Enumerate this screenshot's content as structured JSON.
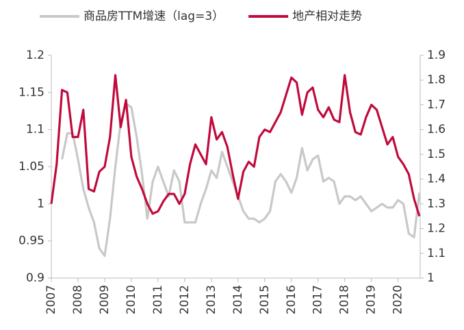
{
  "chart_data": {
    "type": "line",
    "x": [
      2007,
      2007.2,
      2007.4,
      2007.6,
      2007.8,
      2008,
      2008.2,
      2008.4,
      2008.6,
      2008.8,
      2009,
      2009.2,
      2009.4,
      2009.6,
      2009.8,
      2010,
      2010.2,
      2010.4,
      2010.6,
      2010.8,
      2011,
      2011.2,
      2011.4,
      2011.6,
      2011.8,
      2012,
      2012.2,
      2012.4,
      2012.6,
      2012.8,
      2013,
      2013.2,
      2013.4,
      2013.6,
      2013.8,
      2014,
      2014.2,
      2014.4,
      2014.6,
      2014.8,
      2015,
      2015.2,
      2015.4,
      2015.6,
      2015.8,
      2016,
      2016.2,
      2016.4,
      2016.6,
      2016.8,
      2017,
      2017.2,
      2017.4,
      2017.6,
      2017.8,
      2018,
      2018.2,
      2018.4,
      2018.6,
      2018.8,
      2019,
      2019.2,
      2019.4,
      2019.6,
      2019.8,
      2020,
      2020.2,
      2020.4,
      2020.6,
      2020.8
    ],
    "series": [
      {
        "name": "商品房TTM增速（lag=3）",
        "color": "#c8c8c8",
        "values": [
          null,
          null,
          1.06,
          1.095,
          1.095,
          1.06,
          1.02,
          0.995,
          0.975,
          0.94,
          0.93,
          0.98,
          1.05,
          1.11,
          1.135,
          1.13,
          1.09,
          1.04,
          0.98,
          1.03,
          1.05,
          1.03,
          1.01,
          1.045,
          1.03,
          0.975,
          0.975,
          0.975,
          1.0,
          1.02,
          1.045,
          1.035,
          1.07,
          1.05,
          1.03,
          1.01,
          0.99,
          0.98,
          0.98,
          0.975,
          0.98,
          0.99,
          1.03,
          1.04,
          1.03,
          1.015,
          1.035,
          1.075,
          1.045,
          1.06,
          1.065,
          1.03,
          1.035,
          1.03,
          1.0,
          1.01,
          1.01,
          1.005,
          1.01,
          1.0,
          0.99,
          0.995,
          1.0,
          0.995,
          0.995,
          1.005,
          1.0,
          0.96,
          0.955,
          1.015
        ]
      },
      {
        "name": "地产相对走势",
        "color": "#c00a3c",
        "axis": "y2",
        "values": [
          1.3,
          1.46,
          1.76,
          1.75,
          1.57,
          1.57,
          1.68,
          1.36,
          1.35,
          1.43,
          1.45,
          1.57,
          1.82,
          1.61,
          1.72,
          1.49,
          1.41,
          1.36,
          1.3,
          1.26,
          1.27,
          1.31,
          1.34,
          1.34,
          1.3,
          1.34,
          1.46,
          1.54,
          1.5,
          1.46,
          1.65,
          1.56,
          1.59,
          1.53,
          1.42,
          1.32,
          1.43,
          1.47,
          1.45,
          1.57,
          1.6,
          1.59,
          1.63,
          1.67,
          1.74,
          1.81,
          1.79,
          1.66,
          1.75,
          1.77,
          1.68,
          1.65,
          1.69,
          1.64,
          1.63,
          1.82,
          1.67,
          1.59,
          1.58,
          1.65,
          1.7,
          1.68,
          1.61,
          1.54,
          1.57,
          1.49,
          1.46,
          1.42,
          1.32,
          1.25
        ]
      }
    ],
    "xlim": [
      2007,
      2020.83
    ],
    "xticks": [
      2007,
      2008,
      2009,
      2010,
      2011,
      2012,
      2013,
      2014,
      2015,
      2016,
      2017,
      2018,
      2019,
      2020
    ],
    "ylim": [
      0.9,
      1.2
    ],
    "yticks": [
      0.9,
      0.95,
      1,
      1.05,
      1.1,
      1.15,
      1.2
    ],
    "y2lim": [
      1,
      1.9
    ],
    "y2ticks": [
      1,
      1.1,
      1.2,
      1.3,
      1.4,
      1.5,
      1.6,
      1.7,
      1.8,
      1.9
    ],
    "legend": "top"
  }
}
